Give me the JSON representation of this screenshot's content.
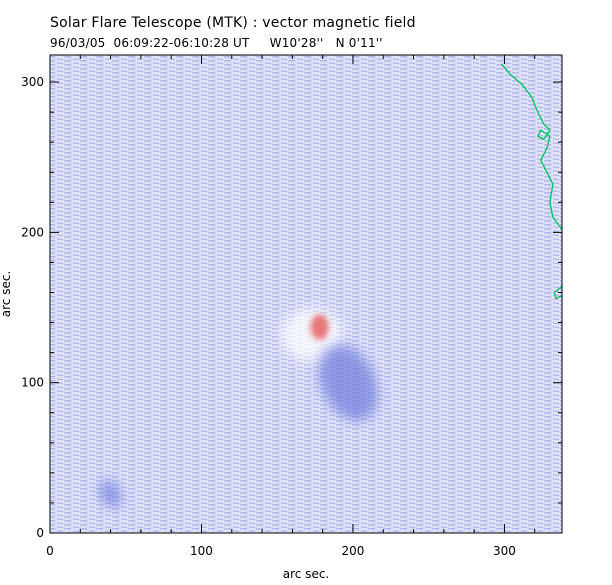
{
  "figure": {
    "title": "Solar Flare Telescope (MTK) : vector magnetic field",
    "subtitle": "96/03/05  06:09:22-06:10:28 UT     W10'28''   N 0'11''"
  },
  "colors": {
    "background": "#ffffff",
    "field_negative": "#8c96e6",
    "field_positive": "#e66464",
    "limb_contour": "#00c864",
    "axes": "#000000"
  },
  "chart_data": {
    "type": "heatmap",
    "title": "Solar Flare Telescope (MTK) : vector magnetic field",
    "subtitle": "96/03/05  06:09:22-06:10:28 UT     W10'28''   N 0'11''",
    "xlabel": "arc sec.",
    "ylabel": "arc sec.",
    "xlim": [
      0,
      338
    ],
    "ylim": [
      0,
      318
    ],
    "xticks": [
      0,
      100,
      200,
      300
    ],
    "yticks": [
      0,
      100,
      200,
      300
    ],
    "x_tick_labels": [
      "0",
      "100",
      "200",
      "300"
    ],
    "y_tick_labels": [
      "0",
      "100",
      "200",
      "300"
    ],
    "grid": false,
    "features": [
      {
        "polarity": "positive",
        "x": 178,
        "y": 137,
        "r": 6
      },
      {
        "polarity": "negative",
        "x": 197,
        "y": 100,
        "r": 22
      },
      {
        "polarity": "negative",
        "x": 40,
        "y": 26,
        "r": 8
      }
    ],
    "limb_contour": [
      [
        298,
        312
      ],
      [
        304,
        305
      ],
      [
        312,
        298
      ],
      [
        318,
        290
      ],
      [
        322,
        280
      ],
      [
        326,
        272
      ],
      [
        330,
        268
      ],
      [
        326,
        262
      ],
      [
        322,
        264
      ],
      [
        324,
        268
      ],
      [
        330,
        264
      ],
      [
        328,
        256
      ],
      [
        324,
        248
      ],
      [
        328,
        240
      ],
      [
        332,
        232
      ],
      [
        330,
        220
      ],
      [
        332,
        210
      ],
      [
        338,
        202
      ]
    ],
    "limb_contour_2": [
      [
        338,
        158
      ],
      [
        334,
        156
      ],
      [
        333,
        160
      ],
      [
        338,
        164
      ]
    ]
  }
}
